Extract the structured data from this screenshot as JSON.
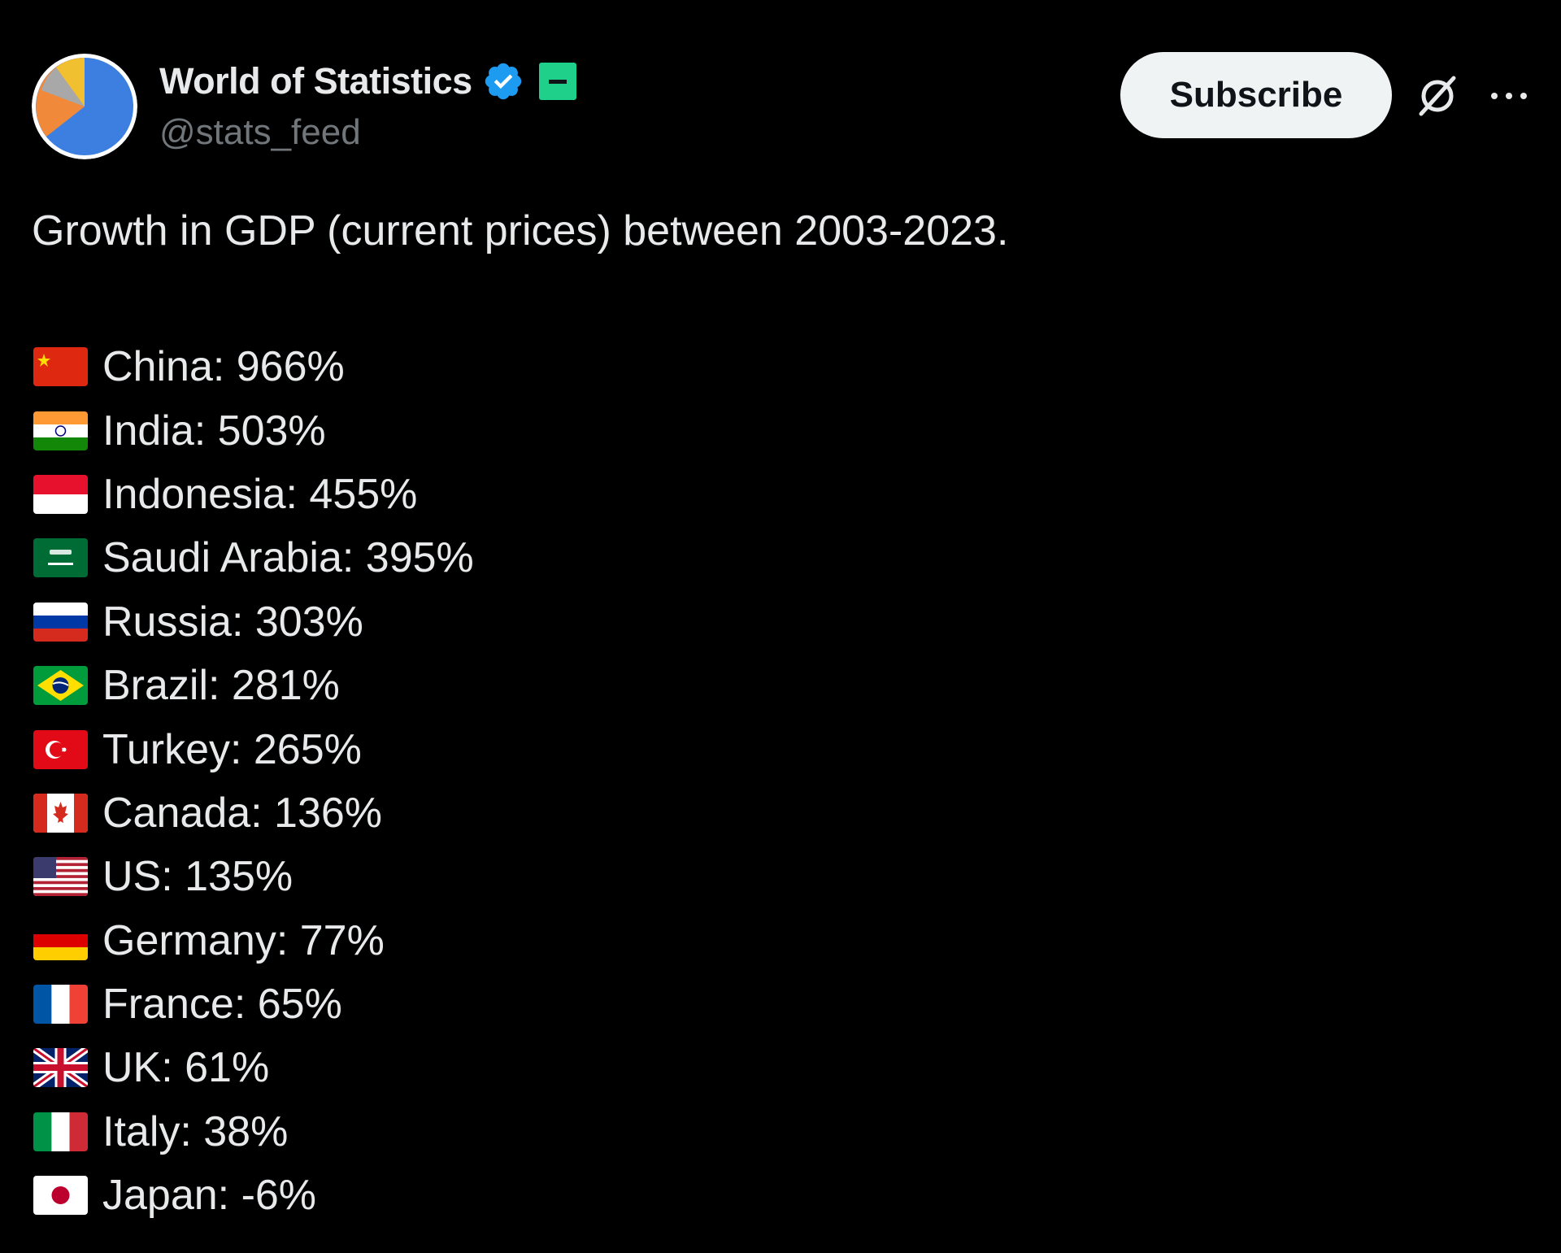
{
  "post": {
    "author": {
      "display_name": "World of Statistics",
      "handle": "@stats_feed",
      "avatar_icon": "pie-chart-avatar",
      "verified_icon": "verified-badge-icon",
      "label_icon": "green-label-badge-icon"
    },
    "actions": {
      "subscribe_label": "Subscribe",
      "grok_icon": "grok-icon",
      "more_icon": "more-icon"
    },
    "text": "Growth in GDP (current prices) between 2003-2023.",
    "countries": [
      {
        "flag": "china-flag",
        "label": "China: 966%"
      },
      {
        "flag": "india-flag",
        "label": "India: 503%"
      },
      {
        "flag": "indonesia-flag",
        "label": "Indonesia: 455%"
      },
      {
        "flag": "saudi-arabia-flag",
        "label": "Saudi Arabia: 395%"
      },
      {
        "flag": "russia-flag",
        "label": "Russia: 303%"
      },
      {
        "flag": "brazil-flag",
        "label": "Brazil: 281%"
      },
      {
        "flag": "turkey-flag",
        "label": "Turkey: 265%"
      },
      {
        "flag": "canada-flag",
        "label": "Canada: 136%"
      },
      {
        "flag": "us-flag",
        "label": "US: 135%"
      },
      {
        "flag": "germany-flag",
        "label": "Germany: 77%"
      },
      {
        "flag": "france-flag",
        "label": "France: 65%"
      },
      {
        "flag": "uk-flag",
        "label": "UK: 61%"
      },
      {
        "flag": "italy-flag",
        "label": "Italy: 38%"
      },
      {
        "flag": "japan-flag",
        "label": "Japan: -6%"
      }
    ]
  },
  "colors": {
    "background": "#000000",
    "text_primary": "#e7e9ea",
    "text_secondary": "#71767b",
    "verified_blue": "#1d9bf0",
    "subscribe_bg": "#eff3f4"
  }
}
